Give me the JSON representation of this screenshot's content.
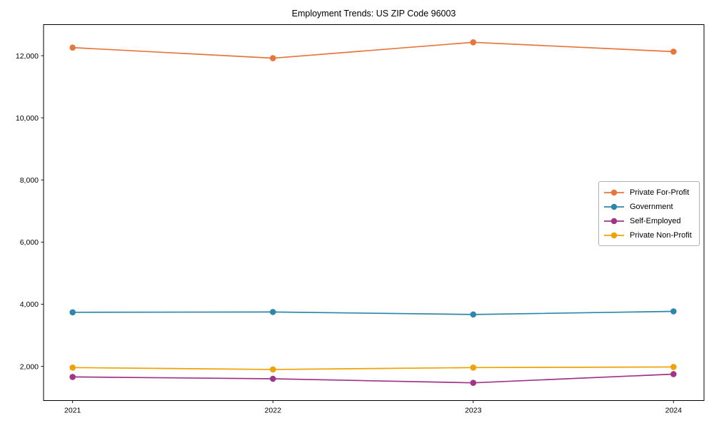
{
  "chart_data": {
    "type": "line",
    "title": "Employment Trends: US ZIP Code 96003",
    "categories": [
      "2021",
      "2022",
      "2023",
      "2024"
    ],
    "series": [
      {
        "name": "Private For-Profit",
        "color": "#e8763b",
        "values": [
          12260,
          11920,
          12430,
          12130
        ]
      },
      {
        "name": "Government",
        "color": "#2e86ab",
        "values": [
          3740,
          3750,
          3670,
          3770
        ]
      },
      {
        "name": "Self-Employed",
        "color": "#a03488",
        "values": [
          1660,
          1600,
          1470,
          1750
        ]
      },
      {
        "name": "Private Non-Profit",
        "color": "#f0a202",
        "values": [
          1960,
          1900,
          1960,
          1980
        ]
      }
    ],
    "xlabel": "",
    "ylabel": "",
    "ylim": [
      900,
      13000
    ],
    "y_ticks": [
      2000,
      4000,
      6000,
      8000,
      10000,
      12000
    ],
    "grid": false,
    "legend_position": "center right",
    "axis_color": "#000000"
  }
}
